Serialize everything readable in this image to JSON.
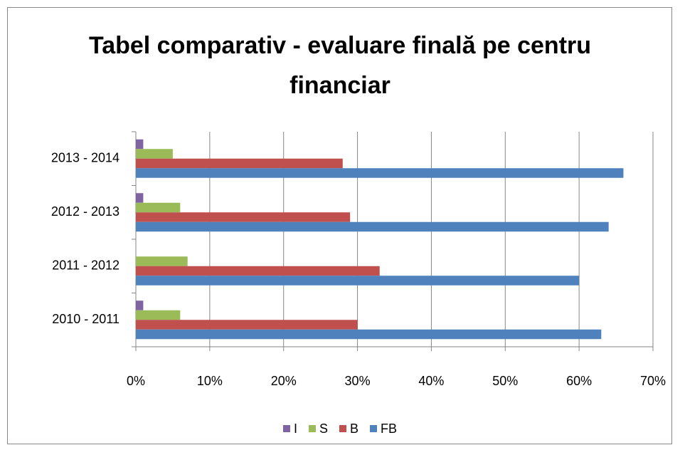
{
  "chart_data": {
    "type": "hbar",
    "title": "Tabel comparativ - evaluare finală pe centru financiar",
    "categories": [
      "2010 - 2011",
      "2011 - 2012",
      "2012 - 2013",
      "2013 - 2014"
    ],
    "series": [
      {
        "name": "I",
        "color": "#8064a2",
        "values": [
          1,
          0,
          1,
          1
        ]
      },
      {
        "name": "S",
        "color": "#9bbb59",
        "values": [
          6,
          7,
          6,
          5
        ]
      },
      {
        "name": "B",
        "color": "#c0504d",
        "values": [
          30,
          33,
          29,
          28
        ]
      },
      {
        "name": "FB",
        "color": "#4f81bd",
        "values": [
          63,
          60,
          64,
          66
        ]
      }
    ],
    "xlim": [
      0,
      70
    ],
    "xticks": [
      {
        "value": 0,
        "label": "0%"
      },
      {
        "value": 10,
        "label": "10%"
      },
      {
        "value": 20,
        "label": "20%"
      },
      {
        "value": 30,
        "label": "30%"
      },
      {
        "value": 40,
        "label": "40%"
      },
      {
        "value": 50,
        "label": "50%"
      },
      {
        "value": 60,
        "label": "60%"
      },
      {
        "value": 70,
        "label": "70%"
      }
    ],
    "grid": true,
    "legend": "bottom"
  }
}
